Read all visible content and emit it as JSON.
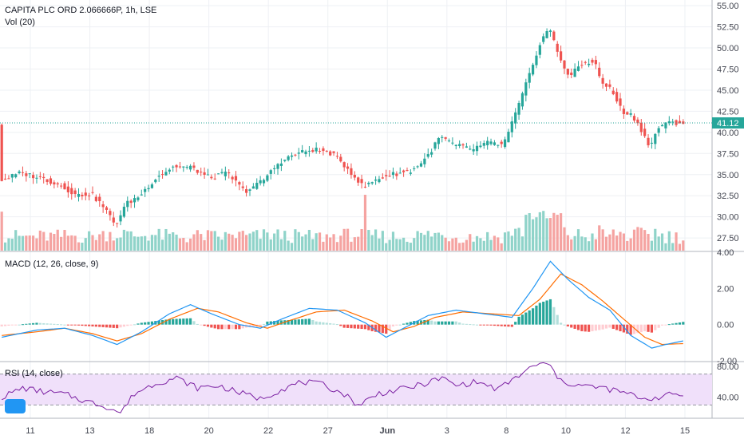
{
  "header": {
    "title": "CAPITA PLC ORD 2.066666P, 1h, LSE",
    "volume": "Vol (20)",
    "macd": "MACD (12, 26, close, 9)",
    "rsi": "RSI (14, close)"
  },
  "colors": {
    "up": "#26a69a",
    "down": "#ef5350",
    "vol_up": "#8fd3c9",
    "vol_down": "#f5a3a1",
    "macd_line": "#2196f3",
    "signal_line": "#ff6d00",
    "rsi_line": "#7b1fa2",
    "rsi_band": "#f0e0fa",
    "price_tag": "#26a69a",
    "grid": "#eef0f4"
  },
  "price_tag": "41.12",
  "chart_data": {
    "type": "candlestick",
    "x_tick_labels": [
      "11",
      "13",
      "18",
      "20",
      "22",
      "27",
      "Jun",
      "3",
      "8",
      "10",
      "12",
      "15"
    ],
    "price_axis": {
      "ticks": [
        "55.00",
        "52.50",
        "50.00",
        "47.50",
        "45.00",
        "42.50",
        "40.00",
        "37.50",
        "35.00",
        "32.50",
        "30.00",
        "27.50"
      ],
      "ylim": [
        26.0,
        55.2
      ]
    },
    "macd_axis": {
      "ticks": [
        "4.00",
        "2.00",
        "0.00",
        "-2.00"
      ],
      "ylim": [
        -2.0,
        4.0
      ]
    },
    "rsi_axis": {
      "ticks": [
        "80.00",
        "40.00"
      ],
      "ylim": [
        15,
        85
      ],
      "band": [
        30,
        70
      ]
    },
    "last_price": 41.12,
    "price_path": [
      [
        0,
        34.3
      ],
      [
        6,
        35.2
      ],
      [
        12,
        34.6
      ],
      [
        18,
        33.6
      ],
      [
        22,
        32.5
      ],
      [
        26,
        32.8
      ],
      [
        30,
        31.0
      ],
      [
        33,
        29.0
      ],
      [
        36,
        31.5
      ],
      [
        40,
        32.5
      ],
      [
        45,
        34.8
      ],
      [
        50,
        36.0
      ],
      [
        55,
        35.8
      ],
      [
        60,
        34.6
      ],
      [
        65,
        35.2
      ],
      [
        70,
        33.0
      ],
      [
        75,
        34.2
      ],
      [
        80,
        36.5
      ],
      [
        85,
        37.5
      ],
      [
        90,
        38.0
      ],
      [
        95,
        37.5
      ],
      [
        100,
        35.5
      ],
      [
        104,
        33.5
      ],
      [
        108,
        34.5
      ],
      [
        112,
        35.0
      ],
      [
        118,
        35.5
      ],
      [
        122,
        37.0
      ],
      [
        126,
        39.5
      ],
      [
        130,
        38.5
      ],
      [
        135,
        38.0
      ],
      [
        140,
        38.8
      ],
      [
        144,
        38.5
      ],
      [
        146,
        40.5
      ],
      [
        150,
        45.0
      ],
      [
        154,
        50.0
      ],
      [
        157,
        52.5
      ],
      [
        160,
        49.0
      ],
      [
        163,
        46.5
      ],
      [
        166,
        48.0
      ],
      [
        170,
        48.5
      ],
      [
        172,
        46.0
      ],
      [
        175,
        45.0
      ],
      [
        178,
        42.5
      ],
      [
        181,
        42.0
      ],
      [
        184,
        40.0
      ],
      [
        186,
        38.0
      ],
      [
        188,
        40.5
      ],
      [
        192,
        41.2
      ],
      [
        195,
        41.1
      ]
    ],
    "macd_path": [
      [
        0,
        -0.7
      ],
      [
        10,
        -0.3
      ],
      [
        18,
        -0.2
      ],
      [
        26,
        -0.6
      ],
      [
        33,
        -1.1
      ],
      [
        40,
        -0.4
      ],
      [
        48,
        0.6
      ],
      [
        54,
        1.1
      ],
      [
        60,
        0.6
      ],
      [
        68,
        0.0
      ],
      [
        74,
        -0.2
      ],
      [
        80,
        0.3
      ],
      [
        88,
        0.9
      ],
      [
        96,
        0.8
      ],
      [
        104,
        0.1
      ],
      [
        110,
        -0.7
      ],
      [
        116,
        -0.1
      ],
      [
        122,
        0.5
      ],
      [
        130,
        0.8
      ],
      [
        138,
        0.6
      ],
      [
        146,
        0.4
      ],
      [
        152,
        2.0
      ],
      [
        157,
        3.5
      ],
      [
        162,
        2.5
      ],
      [
        168,
        1.5
      ],
      [
        174,
        0.8
      ],
      [
        180,
        -0.6
      ],
      [
        186,
        -1.3
      ],
      [
        190,
        -1.1
      ],
      [
        195,
        -0.9
      ]
    ],
    "signal_path": [
      [
        0,
        -0.6
      ],
      [
        10,
        -0.4
      ],
      [
        18,
        -0.2
      ],
      [
        26,
        -0.5
      ],
      [
        33,
        -0.9
      ],
      [
        40,
        -0.5
      ],
      [
        48,
        0.3
      ],
      [
        56,
        0.9
      ],
      [
        62,
        0.7
      ],
      [
        70,
        0.1
      ],
      [
        76,
        -0.2
      ],
      [
        82,
        0.2
      ],
      [
        90,
        0.7
      ],
      [
        98,
        0.8
      ],
      [
        106,
        0.2
      ],
      [
        112,
        -0.4
      ],
      [
        118,
        -0.1
      ],
      [
        124,
        0.4
      ],
      [
        132,
        0.7
      ],
      [
        140,
        0.6
      ],
      [
        148,
        0.5
      ],
      [
        154,
        1.4
      ],
      [
        160,
        2.8
      ],
      [
        166,
        2.2
      ],
      [
        172,
        1.3
      ],
      [
        178,
        0.3
      ],
      [
        184,
        -0.7
      ],
      [
        189,
        -1.1
      ],
      [
        195,
        -1.05
      ]
    ],
    "rsi_path": [
      [
        0,
        40
      ],
      [
        6,
        52
      ],
      [
        12,
        47
      ],
      [
        18,
        44
      ],
      [
        24,
        35
      ],
      [
        30,
        28
      ],
      [
        34,
        20
      ],
      [
        38,
        45
      ],
      [
        44,
        58
      ],
      [
        50,
        65
      ],
      [
        56,
        52
      ],
      [
        62,
        55
      ],
      [
        68,
        46
      ],
      [
        74,
        38
      ],
      [
        80,
        50
      ],
      [
        86,
        60
      ],
      [
        92,
        56
      ],
      [
        98,
        44
      ],
      [
        102,
        30
      ],
      [
        108,
        45
      ],
      [
        114,
        50
      ],
      [
        120,
        56
      ],
      [
        126,
        65
      ],
      [
        130,
        55
      ],
      [
        136,
        60
      ],
      [
        142,
        50
      ],
      [
        146,
        62
      ],
      [
        150,
        74
      ],
      [
        154,
        84
      ],
      [
        157,
        80
      ],
      [
        160,
        60
      ],
      [
        166,
        55
      ],
      [
        172,
        52
      ],
      [
        178,
        46
      ],
      [
        184,
        38
      ],
      [
        188,
        40
      ],
      [
        192,
        44
      ],
      [
        195,
        43
      ]
    ]
  }
}
